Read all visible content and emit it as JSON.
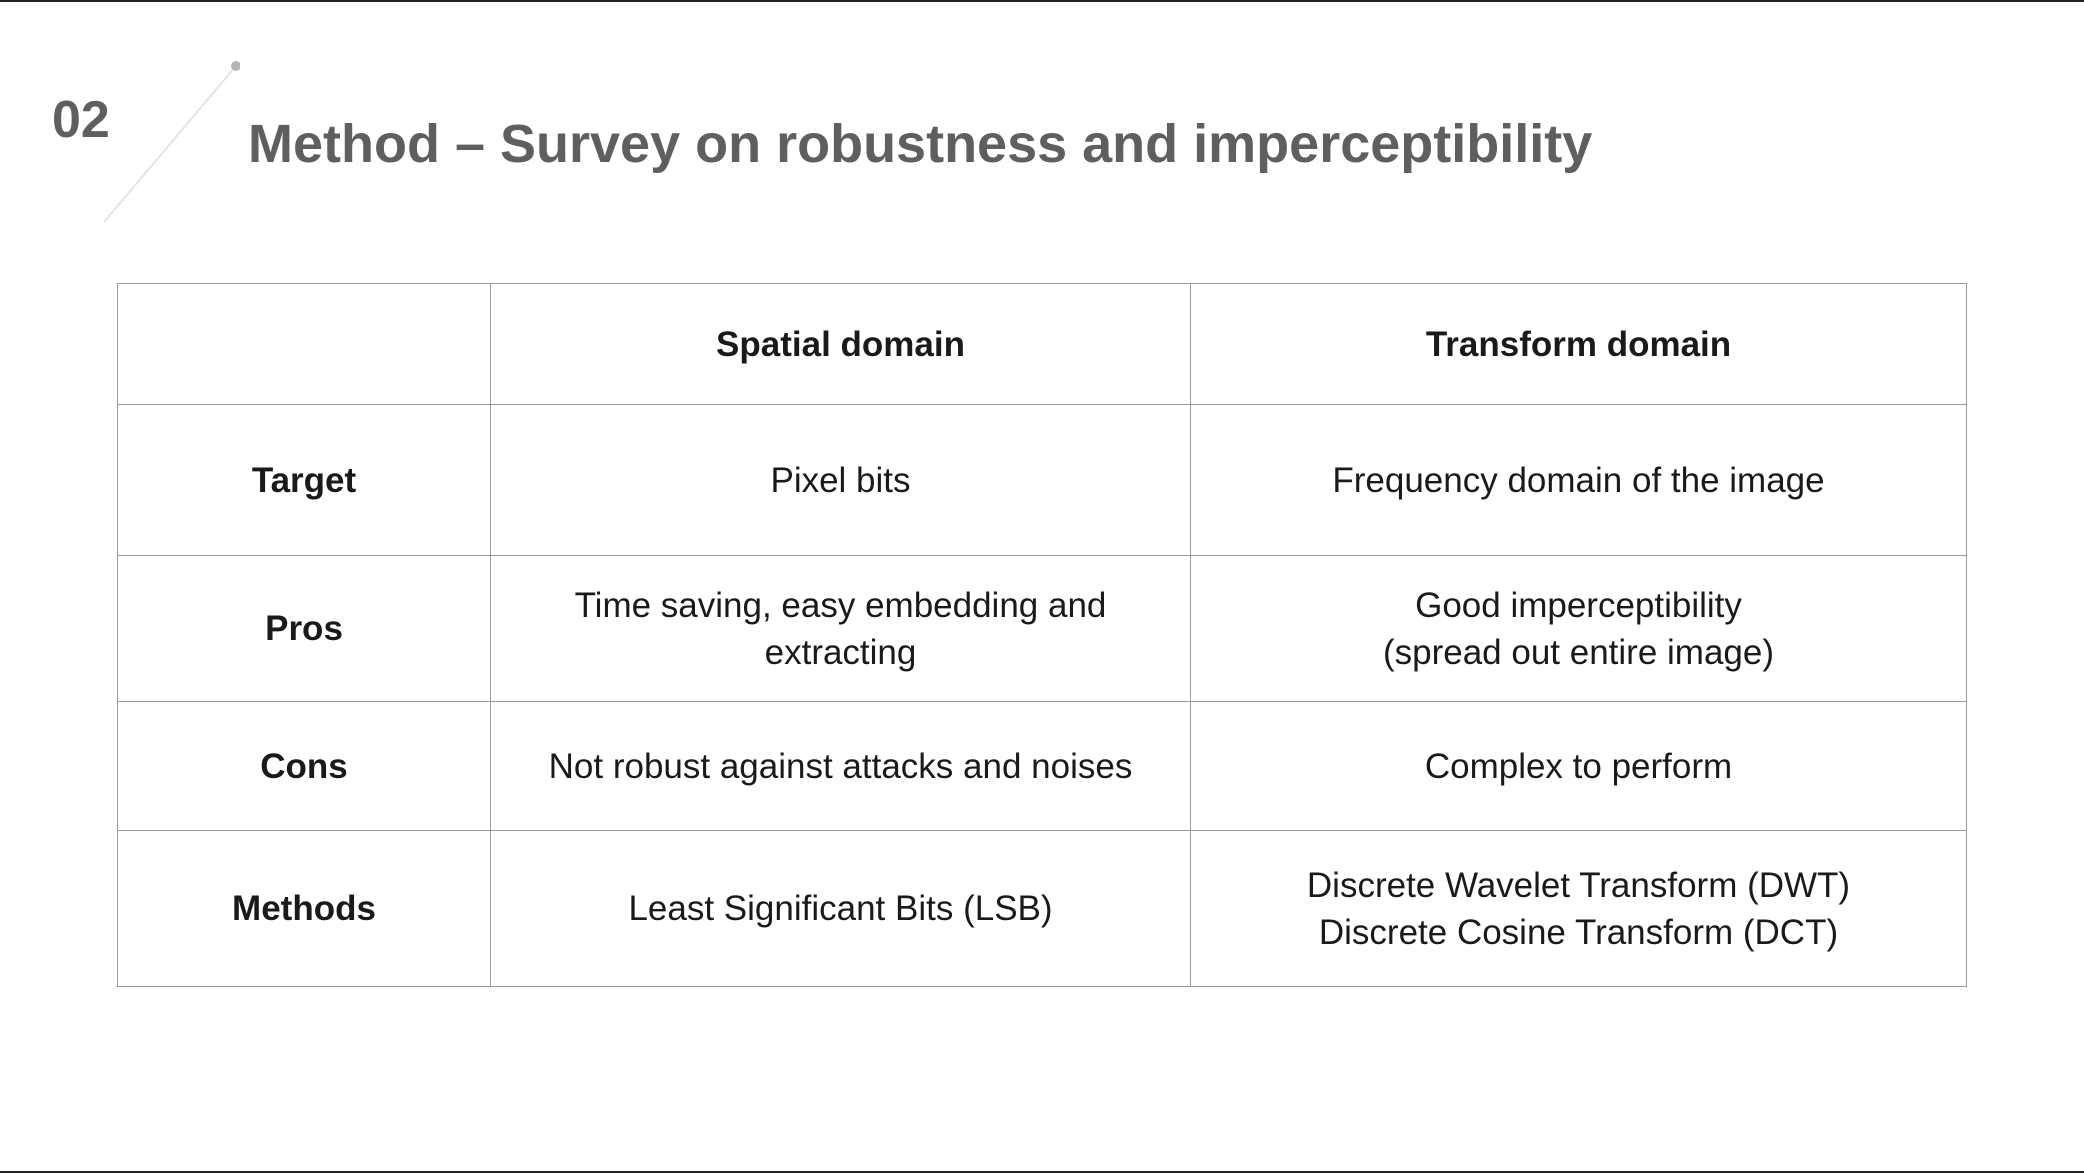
{
  "slide": {
    "number": "02",
    "title": "Method – Survey on robustness and imperceptibility"
  },
  "table": {
    "headers": [
      "",
      "Spatial domain",
      "Transform domain"
    ],
    "rows": [
      {
        "label": "Target",
        "spatial": [
          "Pixel bits"
        ],
        "transform": [
          "Frequency domain of the image"
        ]
      },
      {
        "label": "Pros",
        "spatial": [
          "Time saving, easy embedding and extracting"
        ],
        "transform": [
          "Good imperceptibility",
          "(spread out entire image)"
        ]
      },
      {
        "label": "Cons",
        "spatial": [
          "Not robust against attacks and noises"
        ],
        "transform": [
          "Complex to perform"
        ]
      },
      {
        "label": "Methods",
        "spatial": [
          "Least Significant Bits (LSB)"
        ],
        "transform": [
          "Discrete Wavelet Transform (DWT)",
          "Discrete Cosine Transform (DCT)"
        ]
      }
    ]
  }
}
